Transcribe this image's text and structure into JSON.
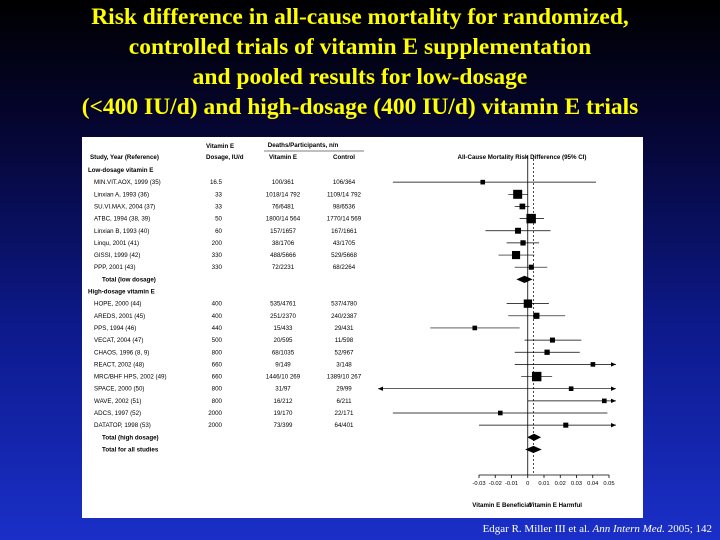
{
  "slide": {
    "title_lines": [
      "Risk difference in all-cause mortality for randomized,",
      "controlled trials of vitamin E supplementation",
      "and pooled results for low-dosage",
      "(<400 IU/d) and high-dosage (400 IU/d) vitamin E trials"
    ],
    "citation_authors": "Edgar R. Miller III et al.",
    "citation_journal": "Ann Intern Med.",
    "citation_year": "2005; 142"
  },
  "colors": {
    "title": "#ffff00",
    "background_top": "#000000",
    "background_bottom": "#1a2fc8",
    "panel": "#ffffff",
    "ink": "#000000"
  },
  "chart_data": {
    "type": "forest",
    "headers": {
      "study": "Study, Year (Reference)",
      "dosage_top": "Vitamin E",
      "dosage": "Dosage, IU/d",
      "deaths_group": "Deaths/Participants, n/n",
      "vitamin_e": "Vitamin E",
      "control": "Control",
      "effect": "All-Cause Mortality Risk Difference (95% CI)"
    },
    "x_ticks": [
      -0.03,
      -0.02,
      -0.01,
      0,
      0.01,
      0.02,
      0.03,
      0.04,
      0.05
    ],
    "x_tick_labels": [
      "-0.03",
      "-0.02",
      "-0.01",
      "0",
      "0.01",
      "0.02",
      "0.03",
      "0.04",
      "0.05"
    ],
    "xlim": [
      -0.03,
      0.05
    ],
    "direction_labels": [
      "Vitamin E Beneficial",
      "Vitamin E Harmful"
    ],
    "pooled_reference": 0.0035,
    "rows": [
      {
        "kind": "group",
        "label": "Low-dosage vitamin E"
      },
      {
        "kind": "study",
        "label": "MIN.VIT.AOX, 1999 (35)",
        "dose": "16.5",
        "vite": "100/361",
        "ctrl": "106/364",
        "rd": -0.0277,
        "ci": [
          -0.083,
          0.042
        ],
        "w": 1
      },
      {
        "kind": "study",
        "label": "Linxian A, 1993 (36)",
        "dose": "33",
        "vite": "1018/14 792",
        "ctrl": "1109/14 792",
        "rd": -0.0062,
        "ci": [
          -0.012,
          0.0
        ],
        "w": 3
      },
      {
        "kind": "study",
        "label": "SU.VI.MAX, 2004 (37)",
        "dose": "33",
        "vite": "76/6481",
        "ctrl": "98/6536",
        "rd": -0.0033,
        "ci": [
          -0.008,
          0.001
        ],
        "w": 1.5
      },
      {
        "kind": "study",
        "label": "ATBC, 1994 (38, 39)",
        "dose": "50",
        "vite": "1800/14 564",
        "ctrl": "1770/14 569",
        "rd": 0.0021,
        "ci": [
          -0.005,
          0.01
        ],
        "w": 3.2
      },
      {
        "kind": "study",
        "label": "Linxian B, 1993 (40)",
        "dose": "60",
        "vite": "157/1657",
        "ctrl": "167/1661",
        "rd": -0.006,
        "ci": [
          -0.026,
          0.014
        ],
        "w": 1.6
      },
      {
        "kind": "study",
        "label": "Linqu, 2001 (41)",
        "dose": "200",
        "vite": "38/1706",
        "ctrl": "43/1705",
        "rd": -0.0029,
        "ci": [
          -0.013,
          0.007
        ],
        "w": 1.3
      },
      {
        "kind": "study",
        "label": "GISSI, 1999 (42)",
        "dose": "330",
        "vite": "488/5666",
        "ctrl": "529/5668",
        "rd": -0.0072,
        "ci": [
          -0.018,
          0.004
        ],
        "w": 2.6
      },
      {
        "kind": "study",
        "label": "PPP, 2001 (43)",
        "dose": "330",
        "vite": "72/2231",
        "ctrl": "68/2264",
        "rd": 0.0022,
        "ci": [
          -0.008,
          0.012
        ],
        "w": 1.2
      },
      {
        "kind": "total",
        "label": "Total (low dosage)",
        "rd": -0.002,
        "ci": [
          -0.007,
          0.003
        ]
      },
      {
        "kind": "group",
        "label": "High-dosage vitamin E"
      },
      {
        "kind": "study",
        "label": "HOPE, 2000 (44)",
        "dose": "400",
        "vite": "535/4761",
        "ctrl": "537/4780",
        "rd": 0.0001,
        "ci": [
          -0.013,
          0.013
        ],
        "w": 2.7
      },
      {
        "kind": "study",
        "label": "AREDS, 2001 (45)",
        "dose": "400",
        "vite": "251/2370",
        "ctrl": "240/2387",
        "rd": 0.0053,
        "ci": [
          -0.012,
          0.023
        ],
        "w": 1.7
      },
      {
        "kind": "study",
        "label": "PPS, 1994 (46)",
        "dose": "440",
        "vite": "15/433",
        "ctrl": "29/431",
        "rd": -0.0326,
        "ci": [
          -0.06,
          -0.005
        ],
        "w": 1
      },
      {
        "kind": "study",
        "label": "VECAT, 2004 (47)",
        "dose": "500",
        "vite": "20/595",
        "ctrl": "11/598",
        "rd": 0.0152,
        "ci": [
          -0.002,
          0.033
        ],
        "w": 1.2
      },
      {
        "kind": "study",
        "label": "CHAOS, 1996 (8, 9)",
        "dose": "800",
        "vite": "68/1035",
        "ctrl": "52/967",
        "rd": 0.0119,
        "ci": [
          -0.008,
          0.032
        ],
        "w": 1.3
      },
      {
        "kind": "study",
        "label": "REACT, 2002 (48)",
        "dose": "660",
        "vite": "9/149",
        "ctrl": "3/148",
        "rd": 0.0401,
        "ci": [
          -0.008,
          0.088
        ],
        "w": 1
      },
      {
        "kind": "study",
        "label": "MRC/BHF HPS, 2002 (49)",
        "dose": "660",
        "vite": "1446/10 269",
        "ctrl": "1389/10 267",
        "rd": 0.0055,
        "ci": [
          -0.004,
          0.015
        ],
        "w": 3.2
      },
      {
        "kind": "study",
        "label": "SPACE, 2000 (50)",
        "dose": "800",
        "vite": "31/97",
        "ctrl": "29/99",
        "rd": 0.0267,
        "ci": [
          -0.1,
          0.155
        ],
        "w": 1
      },
      {
        "kind": "study",
        "label": "WAVE, 2002 (51)",
        "dose": "800",
        "vite": "16/212",
        "ctrl": "6/211",
        "rd": 0.0471,
        "ci": [
          0.0,
          0.095
        ],
        "w": 1
      },
      {
        "kind": "study",
        "label": "ADCS, 1997 (52)",
        "dose": "2000",
        "vite": "19/170",
        "ctrl": "22/171",
        "rd": -0.0169,
        "ci": [
          -0.083,
          0.049
        ],
        "w": 1
      },
      {
        "kind": "study",
        "label": "DATATOP, 1998 (53)",
        "dose": "2000",
        "vite": "73/399",
        "ctrl": "64/401",
        "rd": 0.0234,
        "ci": [
          -0.03,
          0.077
        ],
        "w": 1.2
      },
      {
        "kind": "total",
        "label": "Total (high dosage)",
        "rd": 0.0039,
        "ci": [
          0.0008,
          0.0071
        ]
      },
      {
        "kind": "total",
        "label": "Total for all studies",
        "rd": 0.0035,
        "ci": [
          -0.0016,
          0.0086
        ]
      }
    ]
  }
}
